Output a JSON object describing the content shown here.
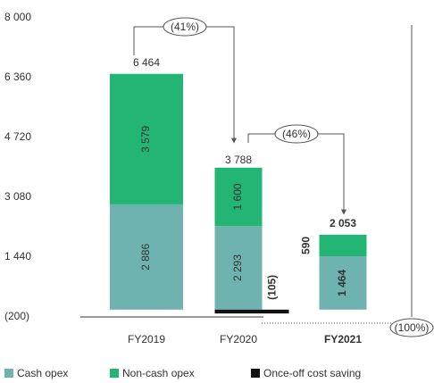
{
  "chart_data": {
    "type": "bar",
    "stacked": true,
    "categories": [
      "FY2019",
      "FY2020",
      "FY2021"
    ],
    "series": [
      {
        "name": "Cash opex",
        "color": "#6fb3b0",
        "values": [
          2886,
          2293,
          1464
        ],
        "value_labels": [
          "2 886",
          "2 293",
          "1 464"
        ]
      },
      {
        "name": "Non-cash opex",
        "color": "#22b573",
        "values": [
          3579,
          1600,
          590
        ],
        "value_labels": [
          "3 579",
          "1 600",
          "590"
        ]
      },
      {
        "name": "Once-off cost saving",
        "color": "#111111",
        "values": [
          null,
          -105,
          null
        ],
        "value_labels": [
          null,
          "(105)",
          null
        ]
      }
    ],
    "totals": [
      6464,
      3788,
      2053
    ],
    "total_labels": [
      "6 464",
      "3 788",
      "2 053"
    ],
    "ylim": [
      -200,
      8000
    ],
    "yticks": [
      {
        "value": -200,
        "label": "(200)"
      },
      {
        "value": 1440,
        "label": "1 440"
      },
      {
        "value": 3080,
        "label": "3 080"
      },
      {
        "value": 4720,
        "label": "4 720"
      },
      {
        "value": 6360,
        "label": "6 360"
      },
      {
        "value": 8000,
        "label": "8 000"
      }
    ],
    "annotations": [
      "(41%)",
      "(46%)",
      "(100%)"
    ],
    "grid": false,
    "legend": "bottom"
  }
}
